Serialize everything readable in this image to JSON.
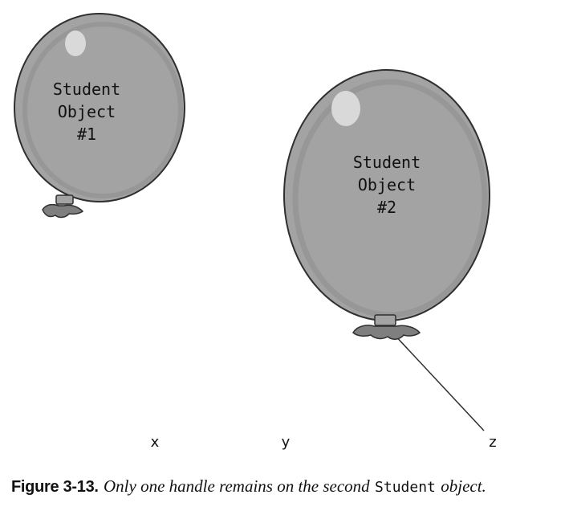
{
  "colors": {
    "balloon_fill": "#a3a3a3",
    "balloon_outline": "#2f2f2f",
    "balloon_shadow": "#8a8a8a",
    "highlight": "#d9d9d9",
    "knot_fill": "#7f7f7f"
  },
  "balloons": [
    {
      "id": "balloon-1",
      "label_line1": "Student",
      "label_line2": "Object",
      "label_line3": "#1",
      "has_string": false
    },
    {
      "id": "balloon-2",
      "label_line1": "Student",
      "label_line2": "Object",
      "label_line3": "#2",
      "has_string": true,
      "string_to": "z"
    }
  ],
  "handles": [
    "x",
    "y",
    "z"
  ],
  "caption": {
    "label": "Figure 3-13.",
    "text_before": "Only one handle remains on the second",
    "code": "Student",
    "text_after": "object."
  }
}
